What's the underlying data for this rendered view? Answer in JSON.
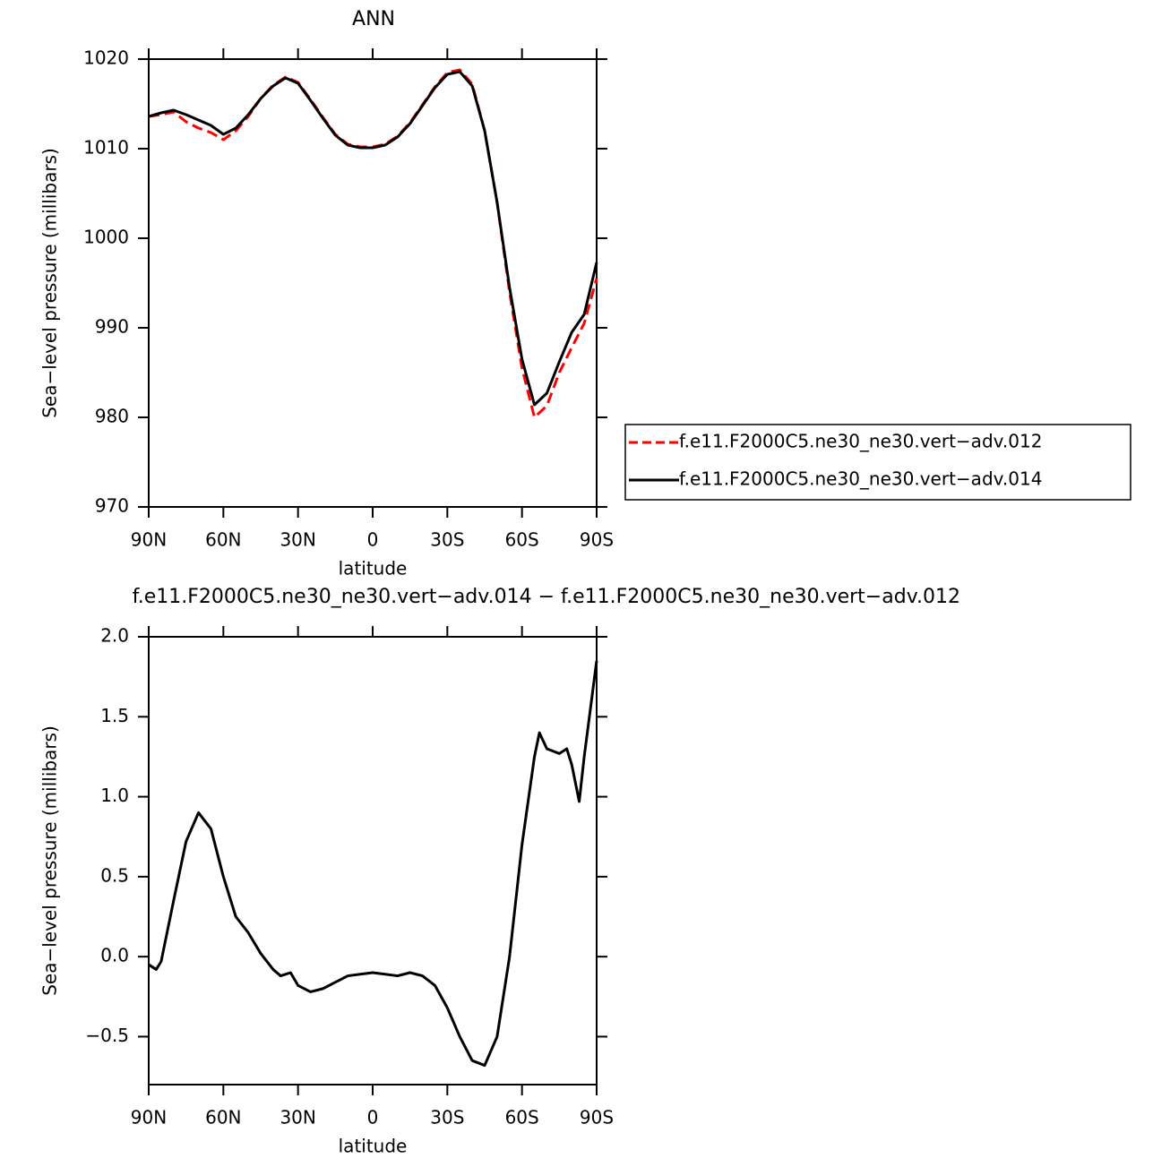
{
  "chart_data": [
    {
      "type": "line",
      "title": "ANN",
      "xlabel": "latitude",
      "ylabel": "Sea−level pressure (millibars)",
      "x": [
        90,
        85,
        80,
        75,
        70,
        65,
        60,
        55,
        50,
        45,
        40,
        35,
        30,
        25,
        20,
        15,
        10,
        5,
        0,
        -5,
        -10,
        -15,
        -20,
        -25,
        -30,
        -35,
        -40,
        -45,
        -50,
        -55,
        -60,
        -65,
        -70,
        -75,
        -80,
        -85,
        -90
      ],
      "series": [
        {
          "name": "f.e11.F2000C5.ne30_ne30.vert−adv.012",
          "color": "#ff0000",
          "line_style": "dashed",
          "values": [
            1013.6,
            1013.8,
            1014.1,
            1013.0,
            1012.3,
            1011.8,
            1011.0,
            1012.0,
            1013.6,
            1015.6,
            1017.1,
            1018.0,
            1017.4,
            1015.5,
            1013.5,
            1011.6,
            1010.5,
            1010.2,
            1010.2,
            1010.5,
            1011.4,
            1012.9,
            1014.9,
            1016.9,
            1018.5,
            1018.8,
            1017.2,
            1012.0,
            1004.0,
            994.0,
            985.5,
            980.0,
            981.3,
            985.0,
            987.8,
            990.5,
            995.5
          ]
        },
        {
          "name": "f.e11.F2000C5.ne30_ne30.vert−adv.014",
          "color": "#000000",
          "line_style": "solid",
          "values": [
            1013.6,
            1014.0,
            1014.3,
            1013.8,
            1013.2,
            1012.6,
            1011.6,
            1012.3,
            1013.8,
            1015.6,
            1017.0,
            1017.9,
            1017.3,
            1015.4,
            1013.4,
            1011.5,
            1010.4,
            1010.1,
            1010.1,
            1010.4,
            1011.3,
            1012.8,
            1014.8,
            1016.8,
            1018.3,
            1018.6,
            1017.0,
            1012.0,
            1004.0,
            994.5,
            986.5,
            981.4,
            982.7,
            986.2,
            989.5,
            991.5,
            997.3
          ]
        }
      ],
      "xlim": [
        90,
        -90
      ],
      "xticks": [
        {
          "value": 90,
          "label": "90N"
        },
        {
          "value": 60,
          "label": "60N"
        },
        {
          "value": 30,
          "label": "30N"
        },
        0,
        {
          "value": -30,
          "label": "30S"
        },
        {
          "value": -60,
          "label": "60S"
        },
        {
          "value": -90,
          "label": "90S"
        }
      ],
      "ylim": [
        970,
        1020
      ],
      "yticks": [
        970,
        980,
        990,
        1000,
        1010,
        1020
      ],
      "legend": "right"
    },
    {
      "type": "line",
      "title": "f.e11.F2000C5.ne30_ne30.vert−adv.014 − f.e11.F2000C5.ne30_ne30.vert−adv.012",
      "xlabel": "latitude",
      "ylabel": "Sea−level pressure (millibars)",
      "x": [
        90,
        87,
        85,
        80,
        75,
        70,
        65,
        60,
        55,
        50,
        45,
        40,
        37,
        33,
        30,
        25,
        20,
        15,
        10,
        5,
        0,
        -5,
        -10,
        -15,
        -20,
        -25,
        -30,
        -35,
        -40,
        -45,
        -50,
        -55,
        -60,
        -65,
        -67,
        -70,
        -75,
        -78,
        -80,
        -83,
        -85,
        -90
      ],
      "values": [
        -0.05,
        -0.08,
        -0.03,
        0.35,
        0.72,
        0.9,
        0.8,
        0.5,
        0.25,
        0.15,
        0.02,
        -0.08,
        -0.12,
        -0.1,
        -0.18,
        -0.22,
        -0.2,
        -0.16,
        -0.12,
        -0.11,
        -0.1,
        -0.11,
        -0.12,
        -0.1,
        -0.12,
        -0.18,
        -0.32,
        -0.5,
        -0.65,
        -0.68,
        -0.5,
        0.0,
        0.7,
        1.25,
        1.4,
        1.3,
        1.27,
        1.3,
        1.2,
        0.97,
        1.25,
        1.85
      ],
      "color": "#000000",
      "xlim": [
        90,
        -90
      ],
      "xticks": [
        {
          "value": 90,
          "label": "90N"
        },
        {
          "value": 60,
          "label": "60N"
        },
        {
          "value": 30,
          "label": "30N"
        },
        0,
        {
          "value": -30,
          "label": "30S"
        },
        {
          "value": -60,
          "label": "60S"
        },
        {
          "value": -90,
          "label": "90S"
        }
      ],
      "ylim": [
        -0.8,
        2.0
      ],
      "yticks": [
        {
          "value": -0.5,
          "label": "−0.5"
        },
        {
          "value": 0,
          "label": "0.0"
        },
        {
          "value": 0.5,
          "label": "0.5"
        },
        {
          "value": 1,
          "label": "1.0"
        },
        {
          "value": 1.5,
          "label": "1.5"
        },
        {
          "value": 2,
          "label": "2.0"
        }
      ]
    }
  ]
}
